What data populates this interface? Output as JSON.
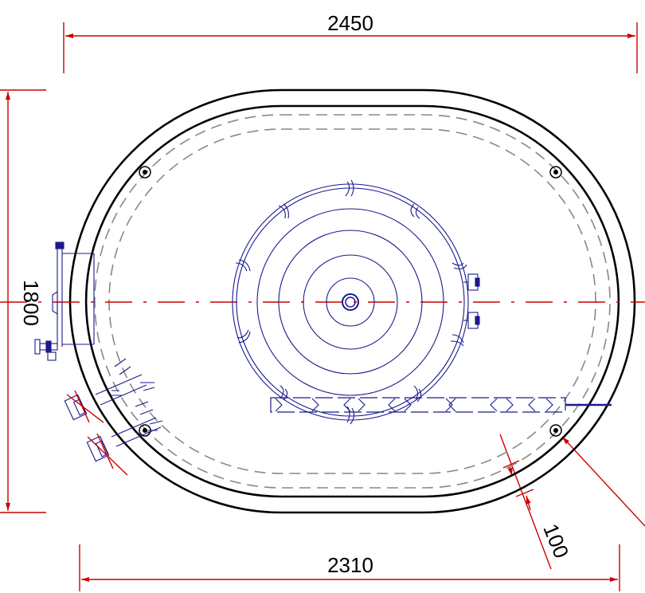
{
  "dimensions": {
    "overall_length": "2450",
    "inner_length": "2310",
    "overall_width": "1800",
    "wall_offset": "100"
  },
  "colors": {
    "dimension": "#cc0000",
    "outline": "#000000",
    "hidden": "#888888",
    "equipment": "#1a1a8c"
  }
}
